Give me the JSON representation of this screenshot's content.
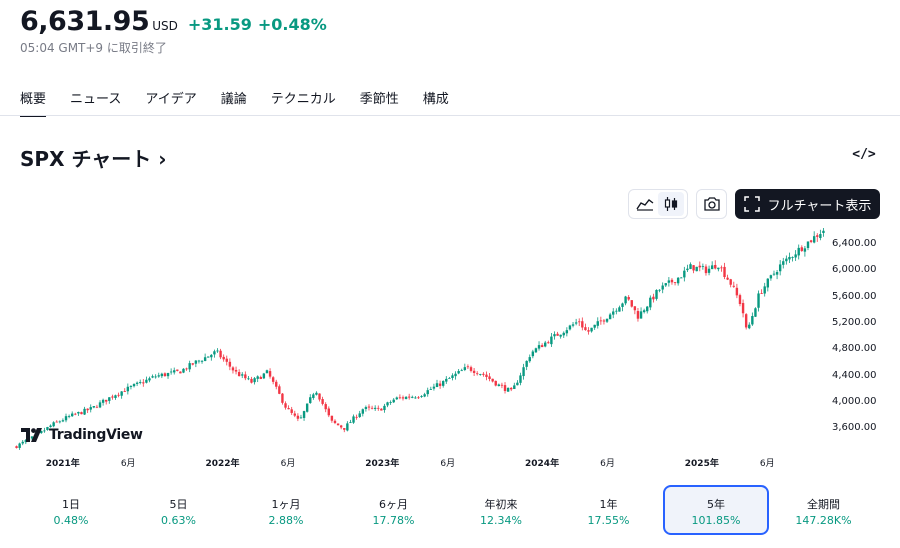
{
  "header": {
    "price": "6,631.95",
    "currency": "USD",
    "change": "+31.59",
    "change_pct": "+0.48%",
    "status": "05:04 GMT+9 に取引終了"
  },
  "tabs": [
    "概要",
    "ニュース",
    "アイデア",
    "議論",
    "テクニカル",
    "季節性",
    "構成"
  ],
  "chart_section": {
    "title": "SPX チャート ›",
    "embed_label": "</>",
    "full_chart_label": "フルチャート表示",
    "logo_text": "TradingView"
  },
  "colors": {
    "up": "#089981",
    "down": "#f23645",
    "accent": "#2962ff",
    "text": "#131722"
  },
  "chart_data": {
    "type": "candlestick",
    "y_ticks": [
      "6,400.00",
      "6,000.00",
      "5,600.00",
      "5,200.00",
      "4,800.00",
      "4,400.00",
      "4,000.00",
      "3,600.00"
    ],
    "y_tick_values": [
      6400,
      6000,
      5600,
      5200,
      4800,
      4400,
      4000,
      3600
    ],
    "ylim": [
      3180,
      6640
    ],
    "x_ticks": [
      {
        "label": "2021年",
        "t": 2021.0,
        "year": true
      },
      {
        "label": "6月",
        "t": 2021.42,
        "year": false
      },
      {
        "label": "2022年",
        "t": 2022.0,
        "year": true
      },
      {
        "label": "6月",
        "t": 2022.42,
        "year": false
      },
      {
        "label": "2023年",
        "t": 2023.0,
        "year": true
      },
      {
        "label": "6月",
        "t": 2023.42,
        "year": false
      },
      {
        "label": "2024年",
        "t": 2024.0,
        "year": true
      },
      {
        "label": "6月",
        "t": 2024.42,
        "year": false
      },
      {
        "label": "2025年",
        "t": 2025.0,
        "year": true
      },
      {
        "label": "6月",
        "t": 2025.42,
        "year": false
      }
    ],
    "xlim": [
      2020.72,
      2025.79
    ],
    "anchors": [
      [
        2020.72,
        3320
      ],
      [
        2020.85,
        3480
      ],
      [
        2020.95,
        3650
      ],
      [
        2021.05,
        3770
      ],
      [
        2021.2,
        3900
      ],
      [
        2021.35,
        4120
      ],
      [
        2021.5,
        4280
      ],
      [
        2021.6,
        4390
      ],
      [
        2021.75,
        4460
      ],
      [
        2021.85,
        4600
      ],
      [
        2021.98,
        4760
      ],
      [
        2022.1,
        4450
      ],
      [
        2022.2,
        4300
      ],
      [
        2022.3,
        4450
      ],
      [
        2022.42,
        3900
      ],
      [
        2022.5,
        3700
      ],
      [
        2022.6,
        4200
      ],
      [
        2022.7,
        3700
      ],
      [
        2022.78,
        3600
      ],
      [
        2022.9,
        3900
      ],
      [
        2023.0,
        3880
      ],
      [
        2023.1,
        4050
      ],
      [
        2023.25,
        4100
      ],
      [
        2023.4,
        4300
      ],
      [
        2023.55,
        4520
      ],
      [
        2023.65,
        4420
      ],
      [
        2023.75,
        4250
      ],
      [
        2023.83,
        4150
      ],
      [
        2023.95,
        4750
      ],
      [
        2024.1,
        5000
      ],
      [
        2024.25,
        5230
      ],
      [
        2024.3,
        5050
      ],
      [
        2024.45,
        5350
      ],
      [
        2024.55,
        5580
      ],
      [
        2024.62,
        5300
      ],
      [
        2024.75,
        5700
      ],
      [
        2024.88,
        5900
      ],
      [
        2024.95,
        6050
      ],
      [
        2025.05,
        6000
      ],
      [
        2025.12,
        6100
      ],
      [
        2025.2,
        5800
      ],
      [
        2025.27,
        5450
      ],
      [
        2025.3,
        5050
      ],
      [
        2025.38,
        5650
      ],
      [
        2025.5,
        6050
      ],
      [
        2025.62,
        6300
      ],
      [
        2025.79,
        6631.95
      ]
    ]
  },
  "periods": [
    {
      "label": "1日",
      "value": "0.48%",
      "selected": false
    },
    {
      "label": "5日",
      "value": "0.63%",
      "selected": false
    },
    {
      "label": "1ヶ月",
      "value": "2.88%",
      "selected": false
    },
    {
      "label": "6ヶ月",
      "value": "17.78%",
      "selected": false
    },
    {
      "label": "年初来",
      "value": "12.34%",
      "selected": false
    },
    {
      "label": "1年",
      "value": "17.55%",
      "selected": false
    },
    {
      "label": "5年",
      "value": "101.85%",
      "selected": true
    },
    {
      "label": "全期間",
      "value": "147.28K%",
      "selected": false
    }
  ]
}
